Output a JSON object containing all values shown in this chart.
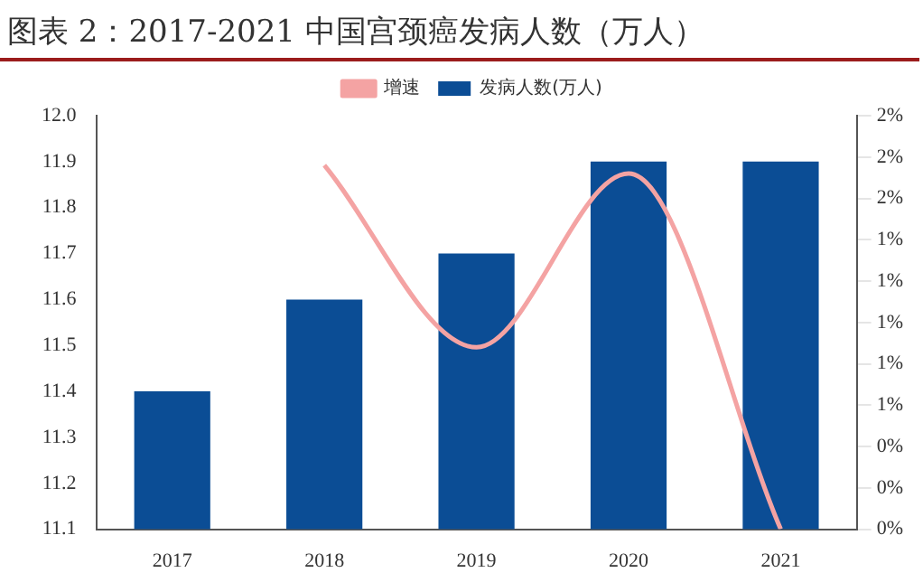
{
  "chart_data": {
    "type": "bar",
    "title": "图表 2：2017-2021 中国宫颈癌发病人数（万人）",
    "categories": [
      "2017",
      "2018",
      "2019",
      "2020",
      "2021"
    ],
    "series": [
      {
        "name": "发病人数(万人)",
        "color": "#0b4d95",
        "values": [
          11.4,
          11.6,
          11.7,
          11.9,
          11.9
        ]
      },
      {
        "name": "增速",
        "type": "line",
        "axis": "y2",
        "color": "#f4a3a3",
        "marker": "none",
        "values": [
          null,
          1.76,
          0.88,
          1.72,
          0
        ]
      }
    ],
    "ylim": [
      11.1,
      12.0
    ],
    "yticks": [
      11.1,
      11.2,
      11.3,
      11.4,
      11.5,
      11.6,
      11.7,
      11.8,
      11.9,
      {
        "value": 12.0,
        "label": "12.0"
      }
    ],
    "y2lim": [
      0,
      2.0
    ],
    "y2ticks": [
      {
        "value": 0,
        "label": "0%"
      },
      {
        "value": 0.2,
        "label": "0%"
      },
      {
        "value": 0.4,
        "label": "0%"
      },
      {
        "value": 0.6,
        "label": "1%"
      },
      {
        "value": 0.8,
        "label": "1%"
      },
      {
        "value": 1.0,
        "label": "1%"
      },
      {
        "value": 1.2,
        "label": "1%"
      },
      {
        "value": 1.4,
        "label": "1%"
      },
      {
        "value": 1.6,
        "label": "2%"
      },
      {
        "value": 1.8,
        "label": "2%"
      },
      {
        "value": 2.0,
        "label": "2%"
      }
    ],
    "grid": false,
    "legend": "top"
  }
}
